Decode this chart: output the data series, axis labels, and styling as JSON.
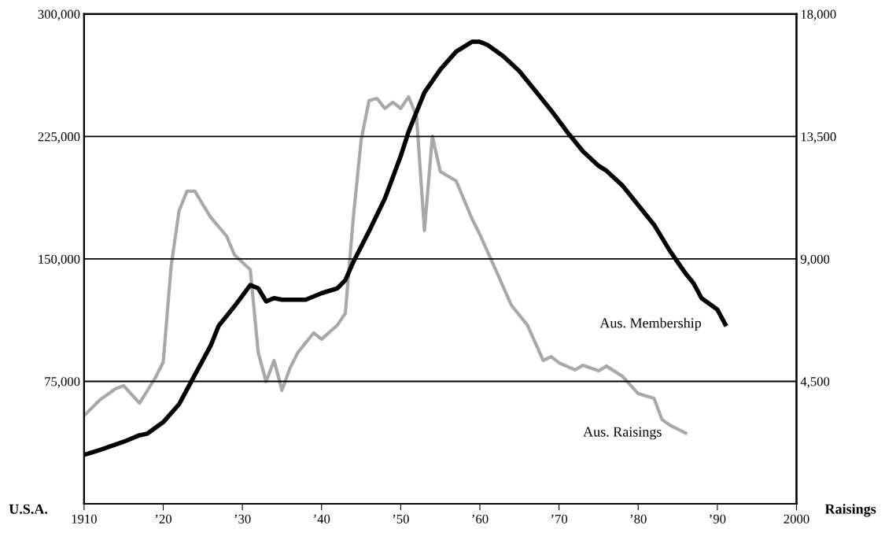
{
  "chart_data": {
    "type": "line",
    "xlabel": null,
    "ylabel": "U.S.A.",
    "y2label": "Raisings",
    "xlim": [
      1910,
      2000
    ],
    "xticks": [
      1910,
      {
        "value": 1920,
        "label": "’20"
      },
      {
        "value": 1930,
        "label": "’30"
      },
      {
        "value": 1940,
        "label": "’40"
      },
      {
        "value": 1950,
        "label": "’50"
      },
      {
        "value": 1960,
        "label": "’60"
      },
      {
        "value": 1970,
        "label": "’70"
      },
      {
        "value": 1980,
        "label": "’80"
      },
      {
        "value": 1990,
        "label": "’90"
      },
      2000
    ],
    "ylim": [
      0,
      300000
    ],
    "yticks": [
      {
        "value": 75000,
        "label": "75,000"
      },
      {
        "value": 150000,
        "label": "150,000"
      },
      {
        "value": 225000,
        "label": "225,000"
      },
      {
        "value": 300000,
        "label": "300,000"
      }
    ],
    "y2lim": [
      0,
      18000
    ],
    "y2ticks": [
      {
        "value": 4500,
        "label": "4,500"
      },
      {
        "value": 9000,
        "label": "9,000"
      },
      {
        "value": 13500,
        "label": "13,500"
      },
      {
        "value": 18000,
        "label": "18,000"
      }
    ],
    "grid": "y",
    "legend": false,
    "marker": "none",
    "line_style": "solid",
    "series": [
      {
        "name": "Aus. Membership",
        "color": "#000000",
        "x": [
          1910,
          1912,
          1915,
          1917,
          1918,
          1920,
          1922,
          1924,
          1926,
          1927,
          1929,
          1931,
          1932,
          1933,
          1934,
          1935,
          1938,
          1940,
          1942,
          1943,
          1944,
          1946,
          1948,
          1950,
          1951,
          1952,
          1953,
          1955,
          1957,
          1959,
          1960,
          1961,
          1963,
          1965,
          1967,
          1969,
          1971,
          1973,
          1975,
          1976,
          1978,
          1980,
          1982,
          1984,
          1986,
          1987,
          1988,
          1990,
          1991
        ],
        "values": [
          30000,
          33000,
          38000,
          42000,
          43000,
          50000,
          61000,
          79000,
          97000,
          109000,
          121000,
          134000,
          132000,
          124000,
          126000,
          125000,
          125000,
          129000,
          132000,
          137000,
          148000,
          167000,
          187000,
          213000,
          228000,
          240000,
          252000,
          266000,
          277000,
          283000,
          283000,
          281000,
          274000,
          265000,
          253000,
          241000,
          228000,
          216000,
          207000,
          204000,
          195000,
          183000,
          171000,
          155000,
          141000,
          135000,
          126000,
          119000,
          110000
        ]
      },
      {
        "name": "Aus. Raisings",
        "color": "#a8a8a8",
        "axis": "y2",
        "x": [
          1910,
          1912,
          1914,
          1915,
          1917,
          1919,
          1920,
          1921,
          1922,
          1923,
          1924,
          1925,
          1926,
          1928,
          1929,
          1931,
          1932,
          1933,
          1934,
          1935,
          1936,
          1937,
          1939,
          1940,
          1942,
          1943,
          1944,
          1945,
          1946,
          1947,
          1948,
          1949,
          1950,
          1951,
          1952,
          1953,
          1954,
          1955,
          1957,
          1959,
          1960,
          1962,
          1964,
          1966,
          1968,
          1969,
          1970,
          1972,
          1973,
          1975,
          1976,
          1978,
          1980,
          1982,
          1983,
          1984,
          1986
        ],
        "values": [
          3240,
          3820,
          4230,
          4340,
          3700,
          4630,
          5210,
          8740,
          10770,
          11490,
          11490,
          11000,
          10530,
          9840,
          9150,
          8600,
          5560,
          4490,
          5270,
          4170,
          4980,
          5560,
          6280,
          6050,
          6570,
          7000,
          10480,
          13370,
          14820,
          14900,
          14530,
          14760,
          14530,
          14960,
          14240,
          10040,
          13510,
          12210,
          11870,
          10480,
          9900,
          8600,
          7290,
          6570,
          5270,
          5410,
          5180,
          4920,
          5090,
          4890,
          5060,
          4690,
          4050,
          3880,
          3100,
          2890,
          2600
        ]
      }
    ]
  }
}
